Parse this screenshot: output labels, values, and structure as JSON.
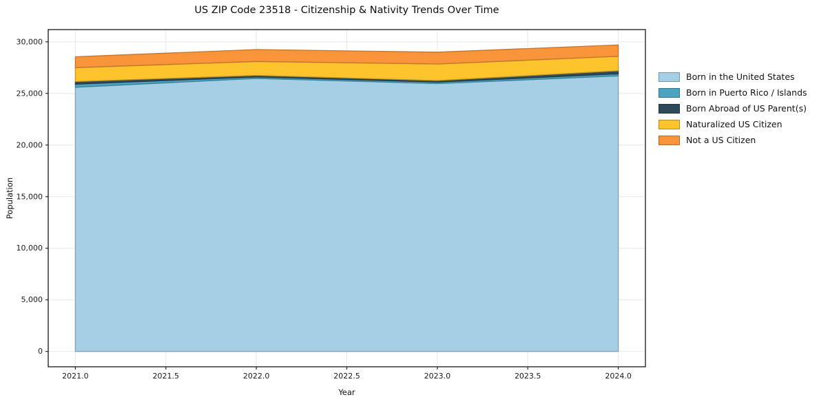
{
  "chart_data": {
    "type": "area",
    "stacked": true,
    "title": "US ZIP Code 23518 - Citizenship & Nativity Trends Over Time",
    "xlabel": "Year",
    "ylabel": "Population",
    "grid": true,
    "legend_position": "right",
    "x": [
      2021,
      2022,
      2023,
      2024
    ],
    "series": [
      {
        "name": "Born in the United States",
        "color": "#a5cfe4",
        "values": [
          25600,
          26450,
          25950,
          26700
        ]
      },
      {
        "name": "Born in Puerto Rico / Islands",
        "color": "#4da4c0",
        "values": [
          300,
          150,
          150,
          200
        ]
      },
      {
        "name": "Born Abroad of US Parent(s)",
        "color": "#2e4a59",
        "values": [
          250,
          150,
          150,
          300
        ]
      },
      {
        "name": "Naturalized US Citizen",
        "color": "#fcc32d",
        "values": [
          1350,
          1350,
          1600,
          1400
        ]
      },
      {
        "name": "Not a US Citizen",
        "color": "#f8953a",
        "values": [
          1050,
          1150,
          1150,
          1100
        ]
      }
    ],
    "x_tick_labels": [
      "2021.0",
      "2021.5",
      "2022.0",
      "2022.5",
      "2023.0",
      "2023.5",
      "2024.0"
    ],
    "y_tick_labels": [
      "0",
      "5,000",
      "10,000",
      "15,000",
      "20,000",
      "25,000",
      "30,000"
    ],
    "xlim": [
      2020.85,
      2024.15
    ],
    "ylim": [
      -1485,
      31185
    ]
  }
}
